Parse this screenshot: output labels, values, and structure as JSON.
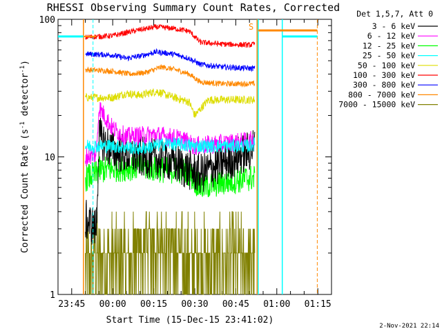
{
  "chart_data": {
    "type": "line",
    "title": "RHESSI Observing Summary Count Rates, Corrected",
    "xlabel": "Start Time (15-Dec-15 23:41:02)",
    "ylabel_main": "Corrected Count Rate (s",
    "ylabel_sup1": "-1",
    "ylabel_mid": " detector",
    "ylabel_sup2": "-1",
    "ylabel_end": ")",
    "yscale": "log",
    "ylim": [
      1,
      100
    ],
    "y_ticks": [
      {
        "value": 1,
        "label": "1"
      },
      {
        "value": 10,
        "label": "10"
      },
      {
        "value": 100,
        "label": "100"
      }
    ],
    "x_range_minutes": [
      -20,
      80
    ],
    "x_ticks": [
      {
        "minute": -15,
        "label": "23:45"
      },
      {
        "minute": 0,
        "label": "00:00"
      },
      {
        "minute": 15,
        "label": "00:15"
      },
      {
        "minute": 30,
        "label": "00:30"
      },
      {
        "minute": 45,
        "label": "00:45"
      },
      {
        "minute": 60,
        "label": "01:00"
      },
      {
        "minute": 75,
        "label": "01:15"
      }
    ],
    "legend_header": "Det 1,5,7, Att 0",
    "annotation_s": "S",
    "date_stamp": "2-Nov-2021 22:14",
    "series": [
      {
        "name": "3 - 6 keV",
        "color": "#000000",
        "points": [
          [
            -10,
            3.5
          ],
          [
            -6,
            3
          ],
          [
            -5,
            14
          ],
          [
            0,
            11
          ],
          [
            10,
            10
          ],
          [
            20,
            9.5
          ],
          [
            28,
            8
          ],
          [
            32,
            7.5
          ],
          [
            40,
            9
          ],
          [
            50,
            11
          ],
          [
            52,
            12
          ]
        ]
      },
      {
        "name": "6 - 12 keV",
        "color": "#ff00ff",
        "points": [
          [
            -10,
            10
          ],
          [
            -6,
            10.5
          ],
          [
            -5,
            23
          ],
          [
            0,
            16
          ],
          [
            5,
            14
          ],
          [
            15,
            14.5
          ],
          [
            25,
            13.5
          ],
          [
            30,
            12
          ],
          [
            40,
            12.5
          ],
          [
            50,
            13
          ],
          [
            52,
            13.5
          ]
        ]
      },
      {
        "name": "12 - 25 keV",
        "color": "#00ff00",
        "points": [
          [
            -10,
            7
          ],
          [
            -6,
            7.5
          ],
          [
            -5,
            8
          ],
          [
            10,
            8.5
          ],
          [
            20,
            8
          ],
          [
            27,
            8
          ],
          [
            32,
            6
          ],
          [
            40,
            6.5
          ],
          [
            50,
            7
          ],
          [
            52,
            7
          ]
        ]
      },
      {
        "name": "25 - 50 keV",
        "color": "#00ffff",
        "points": [
          [
            -10,
            12
          ],
          [
            -6,
            12
          ],
          [
            0,
            12
          ],
          [
            10,
            11.5
          ],
          [
            20,
            12.5
          ],
          [
            30,
            12
          ],
          [
            40,
            12
          ],
          [
            50,
            12
          ],
          [
            52,
            12.5
          ]
        ]
      },
      {
        "name": "50 - 100 keV",
        "color": "#dddd00",
        "points": [
          [
            -10,
            27
          ],
          [
            0,
            27
          ],
          [
            5,
            29
          ],
          [
            10,
            28
          ],
          [
            16,
            30
          ],
          [
            20,
            28
          ],
          [
            28,
            25
          ],
          [
            30,
            20
          ],
          [
            35,
            26
          ],
          [
            45,
            26
          ],
          [
            52,
            26
          ]
        ]
      },
      {
        "name": "100 - 300 keV",
        "color": "#ff0000",
        "points": [
          [
            -10,
            74
          ],
          [
            0,
            76
          ],
          [
            5,
            80
          ],
          [
            10,
            84
          ],
          [
            16,
            88
          ],
          [
            22,
            86
          ],
          [
            28,
            82
          ],
          [
            32,
            68
          ],
          [
            40,
            66
          ],
          [
            50,
            65
          ],
          [
            52,
            66
          ]
        ]
      },
      {
        "name": "300 - 800 keV",
        "color": "#0000ff",
        "points": [
          [
            -10,
            56
          ],
          [
            0,
            55
          ],
          [
            5,
            52
          ],
          [
            10,
            54
          ],
          [
            16,
            58
          ],
          [
            22,
            56
          ],
          [
            28,
            52
          ],
          [
            32,
            47
          ],
          [
            40,
            45
          ],
          [
            50,
            44
          ],
          [
            52,
            44
          ]
        ]
      },
      {
        "name": "800 - 7000 keV",
        "color": "#ff8800",
        "points": [
          [
            -10,
            43
          ],
          [
            0,
            42
          ],
          [
            6,
            40
          ],
          [
            12,
            41
          ],
          [
            18,
            45
          ],
          [
            23,
            43
          ],
          [
            28,
            40
          ],
          [
            32,
            35
          ],
          [
            40,
            34
          ],
          [
            50,
            34
          ],
          [
            52,
            34
          ]
        ]
      },
      {
        "name": "7000 - 15000 keV",
        "color": "#808000",
        "points": [
          [
            -10,
            2
          ],
          [
            0,
            2
          ],
          [
            5,
            2.2
          ],
          [
            10,
            2.4
          ],
          [
            20,
            2.6
          ],
          [
            25,
            2.3
          ],
          [
            30,
            2
          ],
          [
            40,
            2
          ],
          [
            50,
            2
          ],
          [
            52,
            2
          ]
        ]
      }
    ]
  }
}
